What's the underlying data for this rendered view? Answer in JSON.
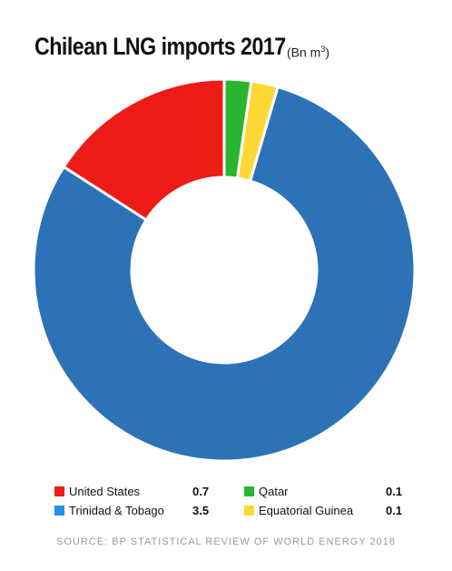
{
  "chart_data": {
    "type": "pie",
    "title": "Chilean LNG imports 2017",
    "unit_prefix": "(Bn m",
    "unit_power": "3",
    "unit_suffix": ")",
    "donut": true,
    "series": [
      {
        "name": "United States",
        "value": 0.7,
        "value_label": "0.7",
        "color": "#ee1c16"
      },
      {
        "name": "Qatar",
        "value": 0.1,
        "value_label": "0.1",
        "color": "#2ab530"
      },
      {
        "name": "Trinidad & Tobago",
        "value": 3.5,
        "value_label": "3.5",
        "color": "#2d72b6"
      },
      {
        "name": "Equatorial Guinea",
        "value": 0.1,
        "value_label": "0.1",
        "color": "#fed836"
      }
    ],
    "slice_order": [
      "Qatar",
      "Equatorial Guinea",
      "Trinidad & Tobago",
      "United States"
    ],
    "legend_order": [
      [
        "United States",
        "Qatar"
      ],
      [
        "Trinidad & Tobago",
        "Equatorial Guinea"
      ]
    ],
    "legend_position": "bottom",
    "source": "SOURCE: BP STATISTICAL REVIEW OF WORLD ENERGY 2018"
  }
}
